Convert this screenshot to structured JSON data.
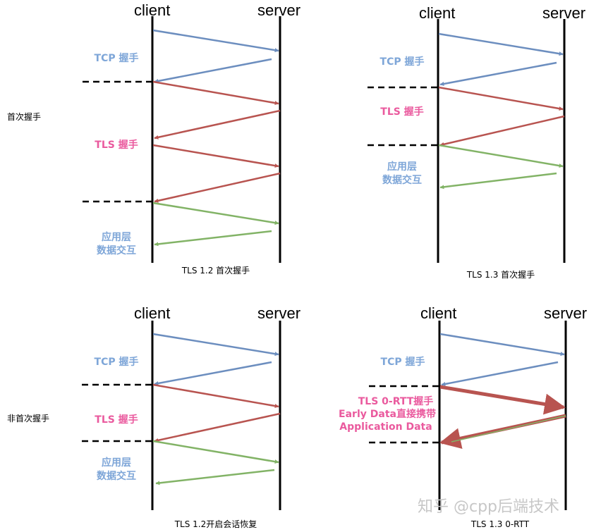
{
  "colors": {
    "tcp": "#6c8ebf",
    "tls": "#b85450",
    "app": "#82b366",
    "label_blue": "#7ea6d8",
    "label_pink": "#ea5a9e",
    "line": "#000000"
  },
  "side_labels": {
    "first": "首次握手",
    "resume": "非首次握手"
  },
  "panels": {
    "tl": {
      "client": "client",
      "server": "server",
      "tcp_label": "TCP 握手",
      "tls_label": "TLS 握手",
      "app_label_1": "应用层",
      "app_label_2": "数据交互",
      "caption": "TLS 1.2 首次握手"
    },
    "tr": {
      "client": "client",
      "server": "server",
      "tcp_label": "TCP 握手",
      "tls_label": "TLS 握手",
      "app_label_1": "应用层",
      "app_label_2": "数据交互",
      "caption": "TLS 1.3 首次握手"
    },
    "bl": {
      "client": "client",
      "server": "server",
      "tcp_label": "TCP 握手",
      "tls_label": "TLS 握手",
      "app_label_1": "应用层",
      "app_label_2": "数据交互",
      "caption": "TLS 1.2开启会话恢复"
    },
    "br": {
      "client": "client",
      "server": "server",
      "tcp_label": "TCP 握手",
      "zero_1": "TLS  0-RTT握手",
      "zero_2": "Early Data直接携带",
      "zero_3": "Application Data",
      "caption": "TLS 1.3 0-RTT"
    }
  },
  "watermark": "知乎 @cpp后端技术"
}
